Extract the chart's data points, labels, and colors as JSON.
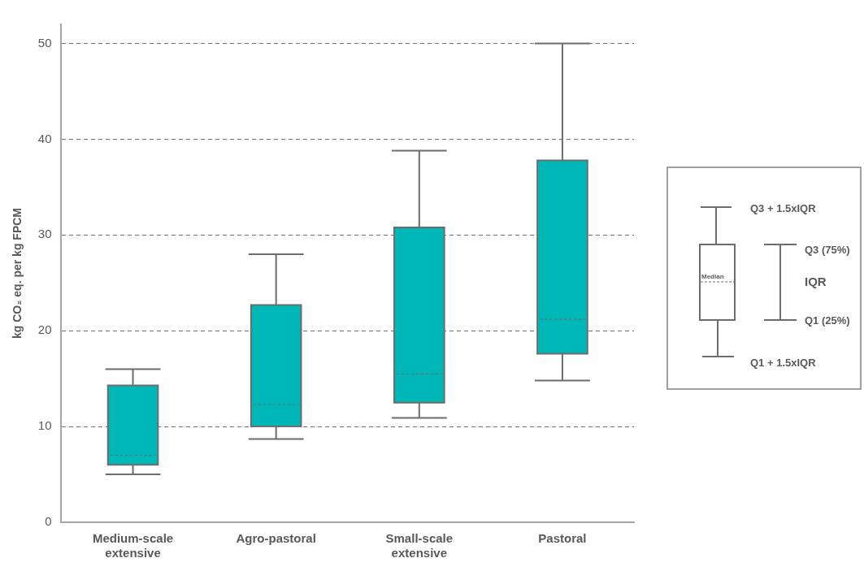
{
  "chart_data": {
    "type": "box",
    "ylabel": "kg CO₂ eq. per kg FPCM",
    "categories": [
      "Medium-scale extensive",
      "Agro-pastoral",
      "Small-scale extensive",
      "Pastoral"
    ],
    "boxes": [
      {
        "low": 5,
        "q1": 6,
        "median": 7,
        "q3": 14.3,
        "high": 16
      },
      {
        "low": 8.7,
        "q1": 10,
        "median": 12.3,
        "q3": 22.7,
        "high": 28
      },
      {
        "low": 10.9,
        "q1": 12.5,
        "median": 15.5,
        "q3": 30.8,
        "high": 38.8
      },
      {
        "low": 14.8,
        "q1": 17.6,
        "median": 21.2,
        "q3": 37.8,
        "high": 50
      }
    ],
    "color": "#00b7b8",
    "ylim": [
      0,
      52
    ],
    "yticks": [
      0,
      10,
      20,
      30,
      40,
      50
    ],
    "grid": "y",
    "legend": false,
    "annotations": [
      "Q3 + 1.5xIQR",
      "Q3 (75%)",
      "IQR",
      "Q1 (25%)",
      "Q1 + 1.5xIQR",
      "Median"
    ]
  }
}
